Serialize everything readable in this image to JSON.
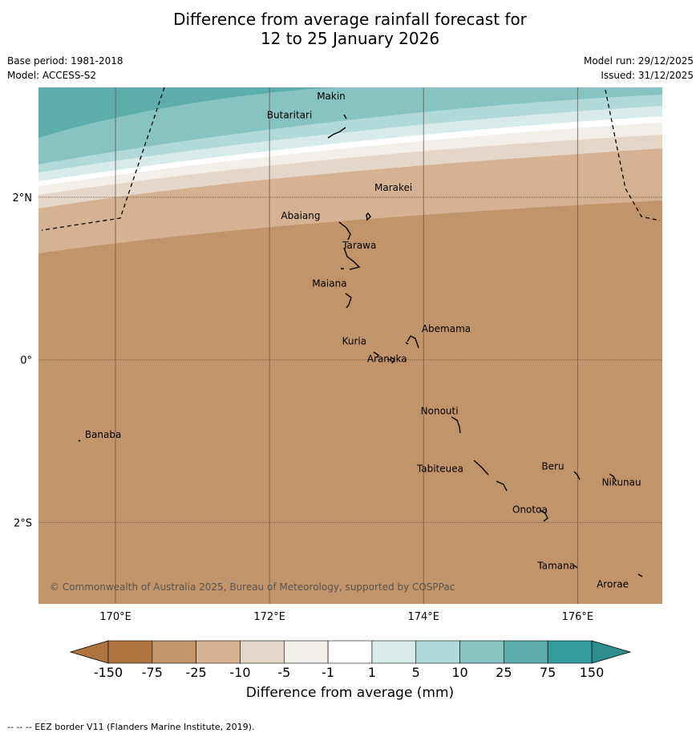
{
  "header": {
    "title_line1": "Difference from average rainfall forecast for",
    "title_line2": "12 to 25 January 2026",
    "base_period": "Base period: 1981-2018",
    "model": "Model: ACCESS-S2",
    "model_run": "Model run: 29/12/2025",
    "issued": "Issued: 31/12/2025"
  },
  "map": {
    "lon_range": [
      169.0,
      177.1
    ],
    "lat_range": [
      -3.0,
      3.35
    ],
    "lon_ticks": [
      {
        "value": 170,
        "label": "170°E"
      },
      {
        "value": 172,
        "label": "172°E"
      },
      {
        "value": 174,
        "label": "174°E"
      },
      {
        "value": 176,
        "label": "176°E"
      }
    ],
    "lat_ticks": [
      {
        "value": 2,
        "label": "2°N"
      },
      {
        "value": 0,
        "label": "0°"
      },
      {
        "value": -2,
        "label": "2°S"
      }
    ],
    "places": [
      {
        "name": "Makin",
        "lon": 173.0,
        "lat": 3.28
      },
      {
        "name": "Butaritari",
        "lon": 172.85,
        "lat": 3.05
      },
      {
        "name": "Marakei",
        "lon": 173.3,
        "lat": 2.02
      },
      {
        "name": "Abaiang",
        "lon": 172.95,
        "lat": 1.83
      },
      {
        "name": "Tarawa",
        "lon": 173.0,
        "lat": 1.4
      },
      {
        "name": "Maiana",
        "lon": 173.0,
        "lat": 0.93
      },
      {
        "name": "Abemama",
        "lon": 173.85,
        "lat": 0.4
      },
      {
        "name": "Kuria",
        "lon": 173.4,
        "lat": 0.22
      },
      {
        "name": "Aranuka",
        "lon": 173.6,
        "lat": 0.17
      },
      {
        "name": "Nonouti",
        "lon": 174.4,
        "lat": -0.65
      },
      {
        "name": "Banaba",
        "lon": 169.55,
        "lat": -0.88
      },
      {
        "name": "Tabiteuea",
        "lon": 174.85,
        "lat": -1.3
      },
      {
        "name": "Beru",
        "lon": 175.98,
        "lat": -1.33
      },
      {
        "name": "Nikunau",
        "lon": 176.45,
        "lat": -1.35
      },
      {
        "name": "Onotoa",
        "lon": 175.58,
        "lat": -1.8
      },
      {
        "name": "Tamana",
        "lon": 175.98,
        "lat": -2.5
      },
      {
        "name": "Arorae",
        "lon": 176.82,
        "lat": -2.65
      }
    ],
    "copyright": "© Commonwealth of Australia 2025, Bureau of Meteorology, supported by COSPPac"
  },
  "colorbar": {
    "ticks": [
      "-150",
      "-75",
      "-25",
      "-10",
      "-5",
      "-1",
      "1",
      "5",
      "10",
      "25",
      "75",
      "150"
    ],
    "colors": [
      "#ae7542",
      "#c29469",
      "#d5b294",
      "#e6d6c7",
      "#f2eee9",
      "#ffffff",
      "#d6ebea",
      "#b1d9d8",
      "#86c3c2",
      "#5dadad",
      "#369b9b"
    ],
    "extend_low_color": "#ae7542",
    "extend_high_color": "#2e8d8d",
    "title": "Difference from average (mm)"
  },
  "footnote": "--  --  -- EEZ border V11 (Flanders Marine Institute, 2019)."
}
